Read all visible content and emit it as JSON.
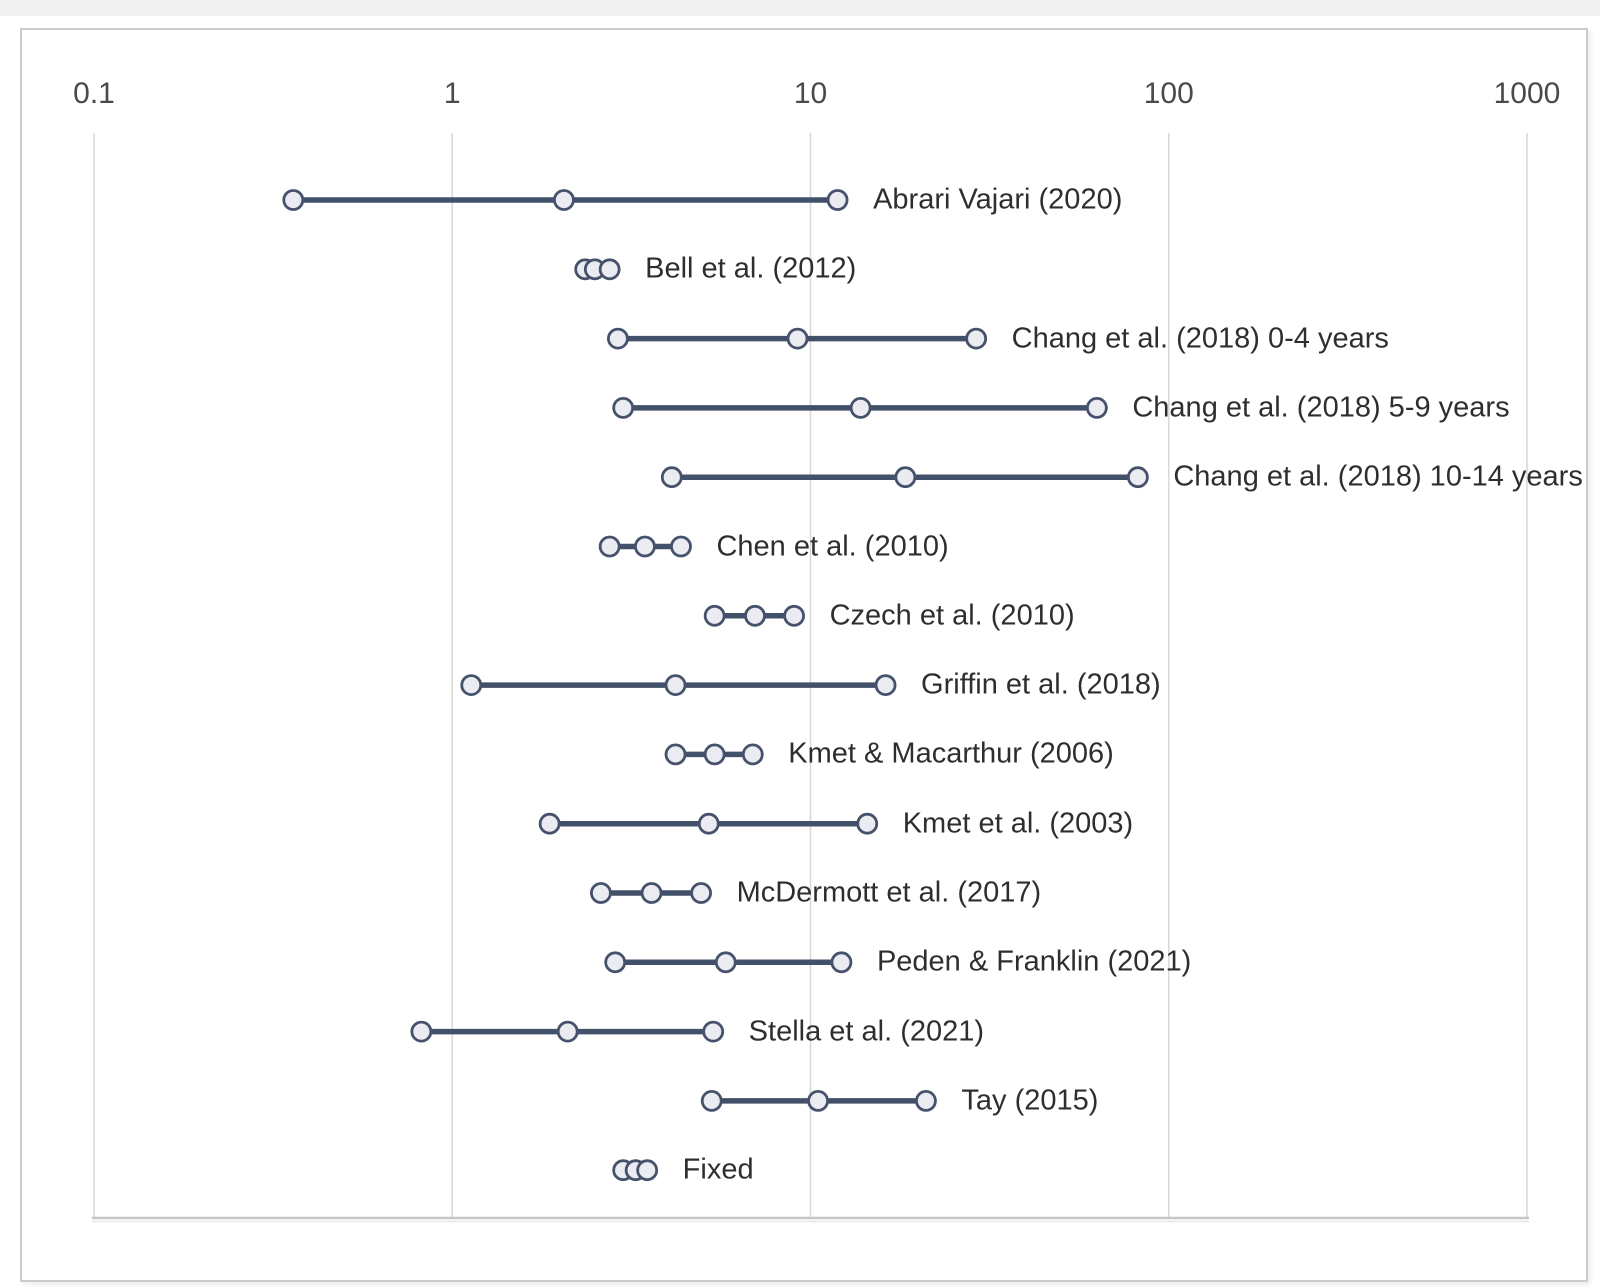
{
  "chart_data": {
    "type": "forest",
    "title": "",
    "xlabel": "",
    "ylabel": "",
    "axis": {
      "scale": "log10",
      "min": 0.1,
      "max": 1000,
      "position": "top",
      "ticks": [
        {
          "label": "0.1",
          "value": 0.1
        },
        {
          "label": "1",
          "value": 1
        },
        {
          "label": "10",
          "value": 10
        },
        {
          "label": "100",
          "value": 100
        },
        {
          "label": "1000",
          "value": 1000
        }
      ]
    },
    "grid": true,
    "legend_position": "none",
    "marker": "circle",
    "studies": [
      {
        "label": "Abrari Vajari (2020)",
        "low": 0.36,
        "mid": 2.05,
        "high": 11.9
      },
      {
        "label": "Bell et al. (2012)",
        "low": 2.35,
        "mid": 2.5,
        "high": 2.75
      },
      {
        "label": "Chang et al. (2018) 0-4 years",
        "low": 2.9,
        "mid": 9.2,
        "high": 29
      },
      {
        "label": "Chang et al. (2018) 5-9 years",
        "low": 3.0,
        "mid": 13.8,
        "high": 63
      },
      {
        "label": "Chang et al. (2018) 10-14 years",
        "low": 4.1,
        "mid": 18.4,
        "high": 82
      },
      {
        "label": "Chen et al. (2010)",
        "low": 2.75,
        "mid": 3.45,
        "high": 4.35
      },
      {
        "label": "Czech et al. (2010)",
        "low": 5.4,
        "mid": 7.0,
        "high": 9.0
      },
      {
        "label": "Griffin et al. (2018)",
        "low": 1.13,
        "mid": 4.2,
        "high": 16.2
      },
      {
        "label": "Kmet & Macarthur (2006)",
        "low": 4.2,
        "mid": 5.4,
        "high": 6.9
      },
      {
        "label": "Kmet et al. (2003)",
        "low": 1.87,
        "mid": 5.2,
        "high": 14.4
      },
      {
        "label": "McDermott et al. (2017)",
        "low": 2.6,
        "mid": 3.6,
        "high": 4.95
      },
      {
        "label": "Peden & Franklin (2021)",
        "low": 2.85,
        "mid": 5.8,
        "high": 12.2
      },
      {
        "label": "Stella et al. (2021)",
        "low": 0.82,
        "mid": 2.1,
        "high": 5.35
      },
      {
        "label": "Tay (2015)",
        "low": 5.3,
        "mid": 10.5,
        "high": 21
      },
      {
        "label": "Fixed",
        "low": 3.0,
        "mid": 3.25,
        "high": 3.5
      }
    ],
    "colors": {
      "marker_fill": "#eaecf1",
      "marker_stroke": "#46526b",
      "segment": "#43506a",
      "gridline": "#d9d9d9",
      "axis_line": "#c6c6c6",
      "axis_line_shadow": "#e6e6e6",
      "tick_text": "#4a4a4a",
      "label_text": "#2e2e2e",
      "frame_border": "#cbcbcb",
      "background": "#ffffff"
    }
  }
}
